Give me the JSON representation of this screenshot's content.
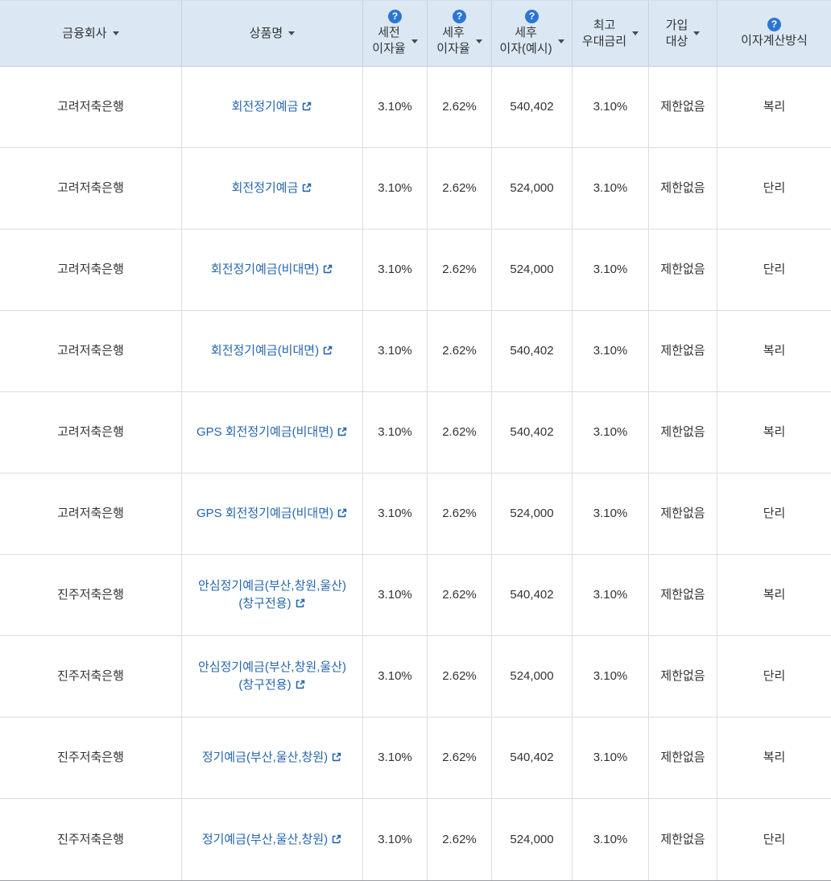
{
  "colors": {
    "header_bg": "#dbe8f4",
    "link_blue": "#2566ad",
    "help_blue": "#2a76d2",
    "text": "#333333"
  },
  "icons": {
    "help": "?",
    "sort": "triangle-down",
    "external_link": "external-link"
  },
  "table": {
    "columns": [
      {
        "id": "company",
        "lines": [
          "금융회사"
        ],
        "help": false,
        "sort": true
      },
      {
        "id": "product",
        "lines": [
          "상품명"
        ],
        "help": false,
        "sort": true
      },
      {
        "id": "pretax-rate",
        "lines": [
          "세전",
          "이자율"
        ],
        "help": true,
        "sort": true
      },
      {
        "id": "posttax-rate",
        "lines": [
          "세후",
          "이자율"
        ],
        "help": true,
        "sort": true
      },
      {
        "id": "posttax-interest",
        "lines": [
          "세후",
          "이자(예시)"
        ],
        "help": true,
        "sort": true
      },
      {
        "id": "max-preferential-rate",
        "lines": [
          "최고",
          "우대금리"
        ],
        "help": false,
        "sort": true
      },
      {
        "id": "eligibility",
        "lines": [
          "가입",
          "대상"
        ],
        "help": false,
        "sort": true
      },
      {
        "id": "interest-method",
        "lines": [
          "이자계산방식"
        ],
        "help": true,
        "sort": false
      }
    ],
    "rows": [
      {
        "company": "고려저축은행",
        "product": "회전정기예금",
        "pretax": "3.10%",
        "posttax": "2.62%",
        "interest_example": "540,402",
        "max_rate": "3.10%",
        "eligibility": "제한없음",
        "method": "복리"
      },
      {
        "company": "고려저축은행",
        "product": "회전정기예금",
        "pretax": "3.10%",
        "posttax": "2.62%",
        "interest_example": "524,000",
        "max_rate": "3.10%",
        "eligibility": "제한없음",
        "method": "단리"
      },
      {
        "company": "고려저축은행",
        "product": "회전정기예금(비대면)",
        "pretax": "3.10%",
        "posttax": "2.62%",
        "interest_example": "524,000",
        "max_rate": "3.10%",
        "eligibility": "제한없음",
        "method": "단리"
      },
      {
        "company": "고려저축은행",
        "product": "회전정기예금(비대면)",
        "pretax": "3.10%",
        "posttax": "2.62%",
        "interest_example": "540,402",
        "max_rate": "3.10%",
        "eligibility": "제한없음",
        "method": "복리"
      },
      {
        "company": "고려저축은행",
        "product": "GPS 회전정기예금(비대면)",
        "pretax": "3.10%",
        "posttax": "2.62%",
        "interest_example": "540,402",
        "max_rate": "3.10%",
        "eligibility": "제한없음",
        "method": "복리"
      },
      {
        "company": "고려저축은행",
        "product": "GPS 회전정기예금(비대면)",
        "pretax": "3.10%",
        "posttax": "2.62%",
        "interest_example": "524,000",
        "max_rate": "3.10%",
        "eligibility": "제한없음",
        "method": "단리"
      },
      {
        "company": "진주저축은행",
        "product": "안심정기예금(부산,창원,울산) (창구전용)",
        "pretax": "3.10%",
        "posttax": "2.62%",
        "interest_example": "540,402",
        "max_rate": "3.10%",
        "eligibility": "제한없음",
        "method": "복리"
      },
      {
        "company": "진주저축은행",
        "product": "안심정기예금(부산,창원,울산) (창구전용)",
        "pretax": "3.10%",
        "posttax": "2.62%",
        "interest_example": "524,000",
        "max_rate": "3.10%",
        "eligibility": "제한없음",
        "method": "단리"
      },
      {
        "company": "진주저축은행",
        "product": "정기예금(부산,울산,창원)",
        "pretax": "3.10%",
        "posttax": "2.62%",
        "interest_example": "540,402",
        "max_rate": "3.10%",
        "eligibility": "제한없음",
        "method": "복리"
      },
      {
        "company": "진주저축은행",
        "product": "정기예금(부산,울산,창원)",
        "pretax": "3.10%",
        "posttax": "2.62%",
        "interest_example": "524,000",
        "max_rate": "3.10%",
        "eligibility": "제한없음",
        "method": "단리"
      }
    ]
  }
}
